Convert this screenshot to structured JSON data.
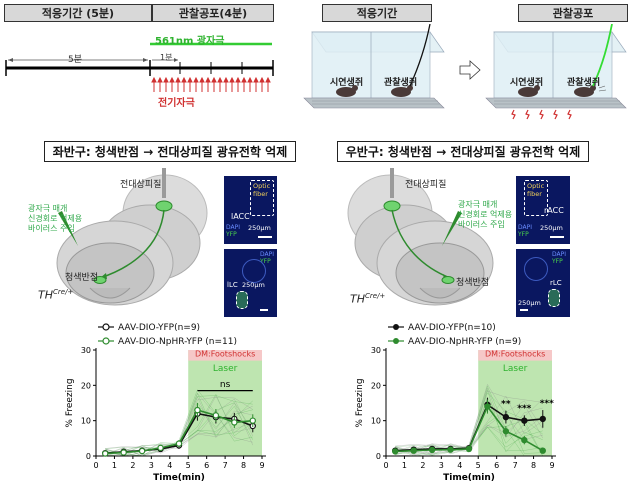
{
  "protocol": {
    "acclimation_label": "적응기간 (5분)",
    "fear_label": "관찰공포(4분)",
    "laser_label": "561nm 광자극",
    "five_min_label": "5분",
    "one_min_label": "1분",
    "shock_label": "전기자극"
  },
  "arenas": {
    "acclimation_title": "적응기간",
    "fear_title": "관찰공포",
    "demonstrator_label": "시연생쥐",
    "observer_label": "관찰생쥐"
  },
  "left": {
    "title": "좌반구: 청색반점 → 전대상피질 광유전학 억제",
    "acc_label": "전대상피질",
    "lc_label": "청색반점",
    "injection_note": [
      "광자극 매개",
      "신경회로 억제용",
      "바이러스 주입"
    ],
    "genotype": "TH",
    "genotype_sup": "Cre/+",
    "panel_top": {
      "region": "lACC",
      "fiber": [
        "Optic",
        "fiber"
      ],
      "stain": [
        "DAPI",
        "YFP"
      ],
      "scale": "250μm"
    },
    "panel_bottom": {
      "region": "lLC",
      "stain": [
        "DAPI",
        "YFP"
      ],
      "scale": "250μm"
    }
  },
  "right": {
    "title": "우반구: 청색반점 → 전대상피질 광유전학 억제",
    "acc_label": "전대상피질",
    "lc_label": "청색반점",
    "injection_note": [
      "광자극 매개",
      "신경회로 억제용",
      "바이러스 주입"
    ],
    "genotype": "TH",
    "genotype_sup": "Cre/+",
    "panel_top": {
      "region": "rACC",
      "fiber": [
        "Optic",
        "fiber"
      ],
      "stain": [
        "DAPI",
        "YFP"
      ],
      "scale": "250μm"
    },
    "panel_bottom": {
      "region": "rLC",
      "stain": [
        "DAPI",
        "YFP"
      ],
      "scale": "250μm"
    }
  },
  "colors": {
    "control": "#111111",
    "nphr": "#2e8b2e",
    "laser": "#a8dc95",
    "shock": "#f6c8c8",
    "laser_bar": "#33cc33",
    "shock_mark": "#d03030"
  },
  "chart_data": [
    {
      "type": "line",
      "xlabel": "Time(min)",
      "ylabel": "% Freezing",
      "xlim": [
        0,
        9
      ],
      "ylim": [
        0,
        30
      ],
      "x_ticks": [
        0,
        1,
        2,
        3,
        4,
        5,
        6,
        7,
        8,
        9
      ],
      "y_ticks": [
        0,
        10,
        20,
        30
      ],
      "x": [
        0.5,
        1.5,
        2.5,
        3.5,
        4.5,
        5.5,
        6.5,
        7.5,
        8.5
      ],
      "series": [
        {
          "name": "AAV-DIO-YFP(n=9)",
          "values": [
            0.8,
            1.2,
            1.5,
            2.0,
            3.0,
            12.0,
            11.0,
            10.5,
            8.5
          ],
          "error": [
            0.5,
            0.5,
            0.6,
            0.7,
            1.0,
            2.0,
            1.8,
            1.7,
            1.8
          ]
        },
        {
          "name": "AAV-DIO-NpHR-YFP (n=11)",
          "values": [
            0.7,
            1.0,
            1.4,
            2.3,
            3.5,
            13.0,
            11.5,
            9.5,
            10.0
          ],
          "error": [
            0.4,
            0.5,
            0.6,
            0.8,
            1.0,
            2.0,
            1.8,
            1.6,
            1.8
          ]
        }
      ],
      "shock_label": "DM:Footshocks",
      "laser_label": "Laser",
      "annotations": [
        "ns"
      ]
    },
    {
      "type": "line",
      "xlabel": "Time(min)",
      "ylabel": "% Freezing",
      "xlim": [
        0,
        9
      ],
      "ylim": [
        0,
        30
      ],
      "x_ticks": [
        0,
        1,
        2,
        3,
        4,
        5,
        6,
        7,
        8,
        9
      ],
      "y_ticks": [
        0,
        10,
        20,
        30
      ],
      "x": [
        0.5,
        1.5,
        2.5,
        3.5,
        4.5,
        5.5,
        6.5,
        7.5,
        8.5
      ],
      "series": [
        {
          "name": "AAV-DIO-YFP(n=10)",
          "values": [
            1.5,
            1.8,
            2.0,
            2.0,
            2.2,
            14.5,
            11.0,
            10.0,
            10.5
          ],
          "error": [
            0.5,
            0.5,
            0.6,
            0.6,
            0.8,
            2.0,
            1.8,
            1.5,
            2.5
          ]
        },
        {
          "name": "AAV-DIO-NpHR-YFP (n=9)",
          "values": [
            1.3,
            1.5,
            1.7,
            1.8,
            2.0,
            14.0,
            7.0,
            4.5,
            1.5
          ],
          "error": [
            0.4,
            0.5,
            0.5,
            0.6,
            0.7,
            2.0,
            1.5,
            1.2,
            0.6
          ]
        }
      ],
      "shock_label": "DM:Footshocks",
      "laser_label": "Laser",
      "annotations": [
        "**",
        "***",
        "***"
      ]
    }
  ]
}
